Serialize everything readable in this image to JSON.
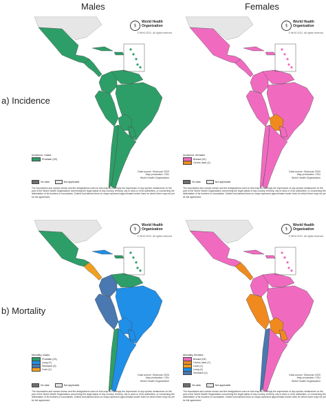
{
  "columns": {
    "males": "Males",
    "females": "Females"
  },
  "rows": {
    "incidence": "a) Incidence",
    "mortality": "b) Mortality"
  },
  "who": {
    "name": "World Health Organization",
    "copyright": "© WHO 2021. All rights reserved"
  },
  "source": {
    "line1": "Data source: Globocan 2020",
    "line2": "Map production: CSU",
    "line3": "World Health Organization"
  },
  "nodata": {
    "no_data": "No data",
    "not_applicable": "Not applicable"
  },
  "disclaimer": "The boundaries and names shown and the designations used on this map do not imply the expression of any opinion whatsoever on the part of the World Health Organization concerning the legal status of any country, territory, city or area or of its authorities, or concerning the delimitation of its frontiers or boundaries. Dotted and dashed lines on maps represent approximate border lines for which there may not yet be full agreement.",
  "colors": {
    "prostate": "#2e9e68",
    "breast": "#f06bc0",
    "cervix": "#f08a1e",
    "lung": "#1f8fe8",
    "stomach": "#4a78b0",
    "liver": "#f0a020",
    "nodata": "#707070",
    "na": "#e6e6e6"
  },
  "panels": {
    "inc_m": {
      "title": "Incidence, males",
      "entries": [
        {
          "label": "Prostate (32)",
          "color": "#2e9e68"
        }
      ]
    },
    "inc_f": {
      "title": "Incidence, females",
      "entries": [
        {
          "label": "Breast (31)",
          "color": "#f06bc0"
        },
        {
          "label": "Cervix uteri (1)",
          "color": "#f08a1e"
        }
      ]
    },
    "mor_m": {
      "title": "Mortality, males",
      "entries": [
        {
          "label": "Prostate (21)",
          "color": "#2e9e68"
        },
        {
          "label": "Lung (7)",
          "color": "#1f8fe8"
        },
        {
          "label": "Stomach (3)",
          "color": "#4a78b0"
        },
        {
          "label": "Liver (1)",
          "color": "#f0a020"
        }
      ]
    },
    "mor_f": {
      "title": "Mortality, females",
      "entries": [
        {
          "label": "Breast (24)",
          "color": "#f06bc0"
        },
        {
          "label": "Cervix uteri (7)",
          "color": "#f08a1e"
        },
        {
          "label": "Liver (1)",
          "color": "#f0a020"
        },
        {
          "label": "Lung (1)",
          "color": "#1f8fe8"
        },
        {
          "label": "Stomach (1)",
          "color": "#4a78b0"
        }
      ]
    }
  }
}
